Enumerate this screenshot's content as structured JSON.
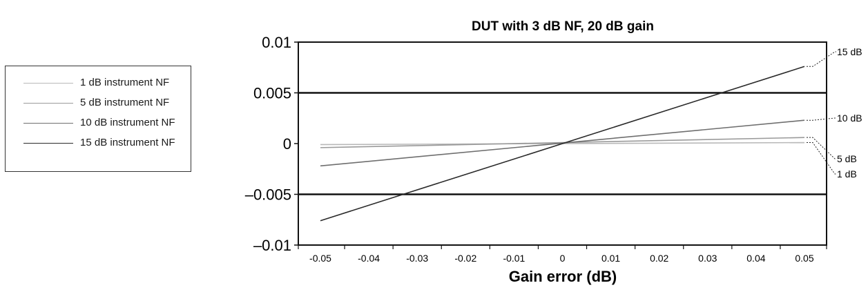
{
  "chart_data": {
    "type": "line",
    "title": "DUT with 3 dB NF, 20 dB gain",
    "xlabel": "Gain error (dB)",
    "ylabel": "",
    "xlim": [
      -0.05,
      0.05
    ],
    "ylim": [
      -0.01,
      0.01
    ],
    "x_ticks": [
      "-0.05",
      "-0.04",
      "-0.03",
      "-0.02",
      "-0.01",
      "0",
      "0.01",
      "0.02",
      "0.03",
      "0.04",
      "0.05"
    ],
    "y_ticks": [
      "0.01",
      "0.005",
      "0",
      "–0.005",
      "–0.01"
    ],
    "reference_lines_y": [
      0.005,
      -0.005
    ],
    "series": [
      {
        "name": "1 dB instrument NF",
        "x": [
          -0.05,
          0.05
        ],
        "y": [
          -0.0001,
          0.0001
        ],
        "end_label": "1 dB",
        "color": "#b8b8b8"
      },
      {
        "name": "5 dB instrument NF",
        "x": [
          -0.05,
          0.05
        ],
        "y": [
          -0.0004,
          0.0006
        ],
        "end_label": "5 dB",
        "color": "#9a9a9a"
      },
      {
        "name": "10 dB instrument NF",
        "x": [
          -0.05,
          0.05
        ],
        "y": [
          -0.0022,
          0.0023
        ],
        "end_label": "10 dB",
        "color": "#6e6e6e"
      },
      {
        "name": "15 dB instrument NF",
        "x": [
          -0.05,
          0.05
        ],
        "y": [
          -0.0076,
          0.0076
        ],
        "end_label": "15 dB",
        "color": "#2a2a2a"
      }
    ],
    "legend_position": "left"
  }
}
